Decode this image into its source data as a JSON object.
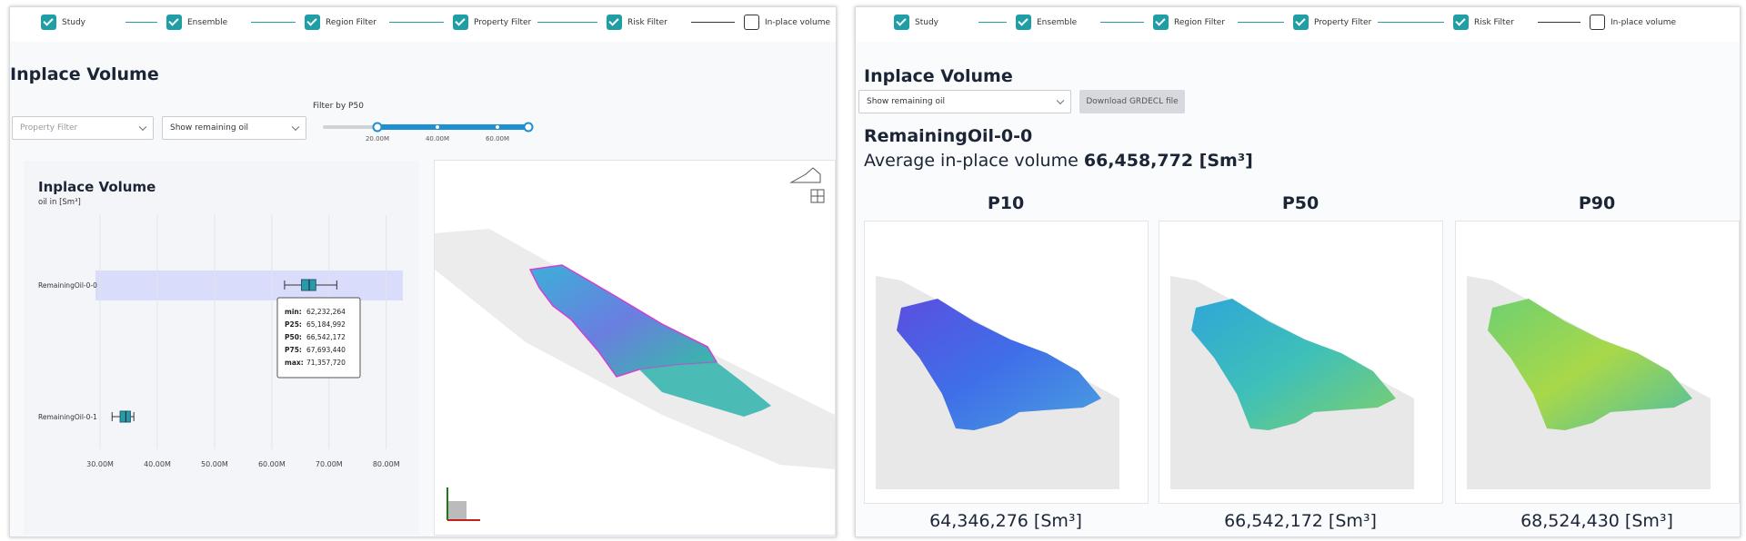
{
  "steps": [
    "Study",
    "Ensemble",
    "Region Filter",
    "Property Filter",
    "Risk Filter",
    "In-place volume"
  ],
  "left": {
    "title": "Inplace Volume",
    "property_filter_placeholder": "Property Filter",
    "display_select": "Show remaining oil",
    "slider": {
      "label": "Filter by P50",
      "ticks": [
        "20.00M",
        "40.00M",
        "60.00M"
      ]
    }
  },
  "chart_data": {
    "type": "box",
    "title": "Inplace Volume",
    "subtitle": "oil in [Sm³]",
    "categories": [
      "RemainingOil-0-0",
      "RemainingOil-0-1"
    ],
    "boxes": [
      {
        "min": 62232264,
        "q1": 65184992,
        "median": 66542172,
        "q3": 67693440,
        "max": 71357720
      },
      {
        "min": 32100000,
        "q1": 33500000,
        "median": 34500000,
        "q3": 35300000,
        "max": 35900000
      }
    ],
    "color": "#2a9aa8",
    "xlim": [
      29200000,
      82900000
    ],
    "xticks": [
      {
        "value": 30000000,
        "label": "30.00M"
      },
      {
        "value": 40000000,
        "label": "40.00M"
      },
      {
        "value": 50000000,
        "label": "50.00M"
      },
      {
        "value": 60000000,
        "label": "60.00M"
      },
      {
        "value": 70000000,
        "label": "70.00M"
      },
      {
        "value": 80000000,
        "label": "80.00M"
      }
    ],
    "grid": true,
    "tooltip": {
      "labels": [
        "min:",
        "P25:",
        "P50:",
        "P75:",
        "max:"
      ],
      "value_labels": [
        "62,232,264",
        "65,184,992",
        "66,542,172",
        "67,693,440",
        "71,357,720"
      ]
    }
  },
  "right": {
    "title": "Inplace Volume",
    "display_select": "Show remaining oil",
    "download_button": "Download GRDECL file",
    "result_name": "RemainingOil-0-0",
    "average_label": "Average in-place volume",
    "average_value": "66,458,772 [Sm³]",
    "cases": [
      {
        "label": "P10",
        "volume": "64,346,276 [Sm³]"
      },
      {
        "label": "P50",
        "volume": "66,542,172 [Sm³]"
      },
      {
        "label": "P90",
        "volume": "68,524,430 [Sm³]"
      }
    ]
  }
}
